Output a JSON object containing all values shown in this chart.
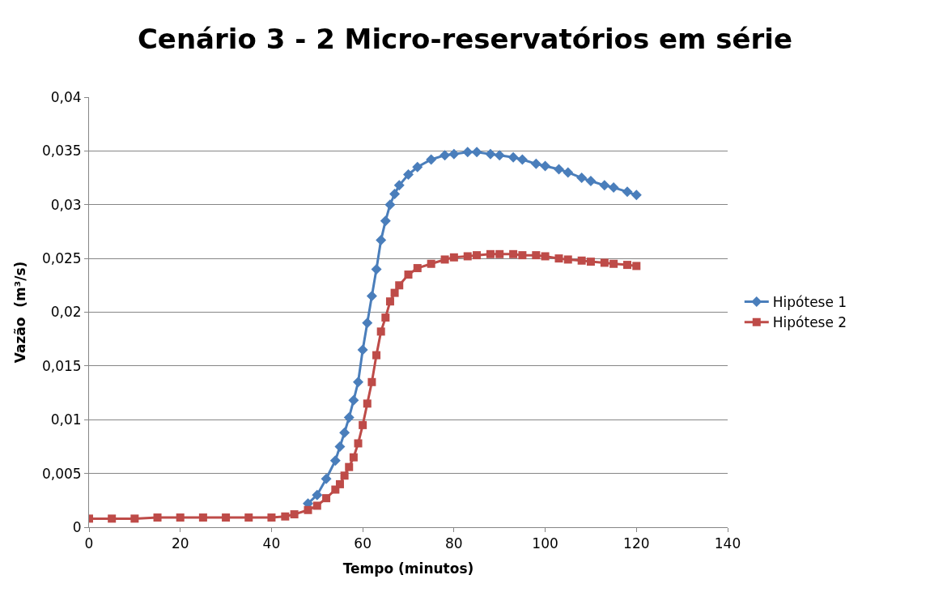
{
  "chart_data": {
    "type": "line",
    "title": "Cenário 3 - 2 Micro-reservatórios em série",
    "xlabel": "Tempo (minutos)",
    "ylabel": "Vazão  (m³/s)",
    "xlim": [
      0,
      140
    ],
    "xticks": [
      0,
      20,
      40,
      60,
      80,
      100,
      120,
      140
    ],
    "ylim": [
      0,
      0.04
    ],
    "yticks": [
      "0",
      {
        "value": 0.005,
        "label": "0,005"
      },
      {
        "value": 0.01,
        "label": "0,01"
      },
      {
        "value": 0.015,
        "label": "0,015"
      },
      {
        "value": 0.02,
        "label": "0,02"
      },
      {
        "value": 0.025,
        "label": "0,025"
      },
      {
        "value": 0.03,
        "label": "0,03"
      },
      {
        "value": 0.035,
        "label": "0,035"
      },
      {
        "value": 0.04,
        "label": "0,04"
      }
    ],
    "grid": "y",
    "legend": "right",
    "series": [
      {
        "name": "Hipótese 1",
        "color": "#4a7ebb",
        "marker": "diamond",
        "x": [
          48,
          50,
          52,
          54,
          55,
          56,
          57,
          58,
          59,
          60,
          61,
          62,
          63,
          64,
          65,
          66,
          67,
          68,
          70,
          72,
          75,
          78,
          80,
          83,
          85,
          88,
          90,
          93,
          95,
          98,
          100,
          103,
          105,
          108,
          110,
          113,
          115,
          118,
          120
        ],
        "values": [
          0.0022,
          0.003,
          0.0045,
          0.0062,
          0.0075,
          0.0088,
          0.0102,
          0.0118,
          0.0135,
          0.0165,
          0.019,
          0.0215,
          0.024,
          0.0267,
          0.0285,
          0.03,
          0.031,
          0.0318,
          0.0328,
          0.0335,
          0.0342,
          0.0346,
          0.0347,
          0.0349,
          0.0349,
          0.0347,
          0.0346,
          0.0344,
          0.0342,
          0.0338,
          0.0336,
          0.0333,
          0.033,
          0.0325,
          0.0322,
          0.0318,
          0.0316,
          0.0312,
          0.0309
        ]
      },
      {
        "name": "Hipótese 2",
        "color": "#be4b48",
        "marker": "square",
        "x": [
          0,
          5,
          10,
          15,
          20,
          25,
          30,
          35,
          40,
          43,
          45,
          48,
          50,
          52,
          54,
          55,
          56,
          57,
          58,
          59,
          60,
          61,
          62,
          63,
          64,
          65,
          66,
          67,
          68,
          70,
          72,
          75,
          78,
          80,
          83,
          85,
          88,
          90,
          93,
          95,
          98,
          100,
          103,
          105,
          108,
          110,
          113,
          115,
          118,
          120
        ],
        "values": [
          0.0008,
          0.0008,
          0.0008,
          0.0009,
          0.0009,
          0.0009,
          0.0009,
          0.0009,
          0.0009,
          0.001,
          0.0012,
          0.0016,
          0.002,
          0.0027,
          0.0035,
          0.004,
          0.0048,
          0.0056,
          0.0065,
          0.0078,
          0.0095,
          0.0115,
          0.0135,
          0.016,
          0.0182,
          0.0195,
          0.021,
          0.0218,
          0.0225,
          0.0235,
          0.0241,
          0.0245,
          0.0249,
          0.0251,
          0.0252,
          0.0253,
          0.0254,
          0.0254,
          0.0254,
          0.0253,
          0.0253,
          0.0252,
          0.025,
          0.0249,
          0.0248,
          0.0247,
          0.0246,
          0.0245,
          0.0244,
          0.0243
        ]
      }
    ]
  }
}
